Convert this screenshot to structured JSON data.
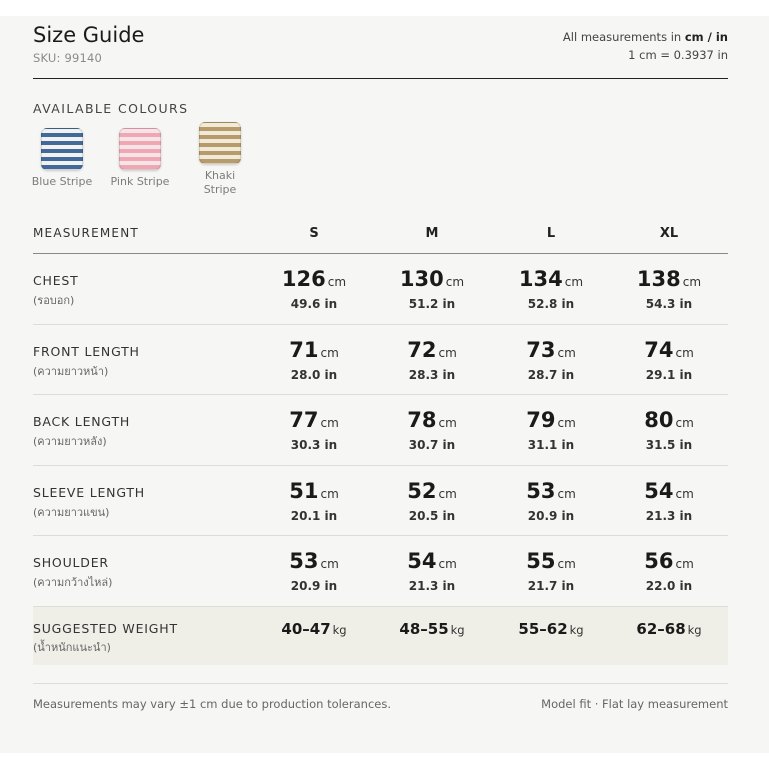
{
  "header": {
    "title": "Size Guide",
    "sku": "SKU: 99140",
    "units_prefix": "All measurements in ",
    "units_value": "cm / in",
    "conversion": "1 cm = 0.3937 in"
  },
  "colours": {
    "title": "AVAILABLE COLOURS",
    "items": [
      {
        "name": "Blue Stripe",
        "base": "#f1f1ef",
        "stripe": "#41699b"
      },
      {
        "name": "Pink Stripe",
        "base": "#f7e4e7",
        "stripe": "#f0a7b4"
      },
      {
        "name": "Khaki Stripe",
        "base": "#f1ead8",
        "stripe": "#b79b6a"
      }
    ],
    "khaki_line1": "Khaki",
    "khaki_line2": "Stripe"
  },
  "table": {
    "header_label": "MEASUREMENT",
    "sizes": [
      "S",
      "M",
      "L",
      "XL"
    ],
    "rows": [
      {
        "label": "CHEST",
        "sub": "(รอบอก)",
        "cm": [
          "126",
          "130",
          "134",
          "138"
        ],
        "inch": [
          "49.6 in",
          "51.2 in",
          "52.8 in",
          "54.3 in"
        ]
      },
      {
        "label": "FRONT LENGTH",
        "sub": "(ความยาวหน้า)",
        "cm": [
          "71",
          "72",
          "73",
          "74"
        ],
        "inch": [
          "28.0 in",
          "28.3 in",
          "28.7 in",
          "29.1 in"
        ]
      },
      {
        "label": "BACK LENGTH",
        "sub": "(ความยาวหลัง)",
        "cm": [
          "77",
          "78",
          "79",
          "80"
        ],
        "inch": [
          "30.3 in",
          "30.7 in",
          "31.1 in",
          "31.5 in"
        ]
      },
      {
        "label": "SLEEVE LENGTH",
        "sub": "(ความยาวแขน)",
        "cm": [
          "51",
          "52",
          "53",
          "54"
        ],
        "inch": [
          "20.1 in",
          "20.5 in",
          "20.9 in",
          "21.3 in"
        ]
      },
      {
        "label": "SHOULDER",
        "sub": "(ความกว้างไหล่)",
        "cm": [
          "53",
          "54",
          "55",
          "56"
        ],
        "inch": [
          "20.9 in",
          "21.3 in",
          "21.7 in",
          "22.0 in"
        ]
      }
    ],
    "cm_unit": "cm",
    "weight": {
      "label": "SUGGESTED WEIGHT",
      "sub": "(น้ำหนักแนะนำ)",
      "values": [
        "40–47",
        "48–55",
        "55–62",
        "62–68"
      ],
      "unit": "kg"
    }
  },
  "footer": {
    "left": "Measurements may vary ±1 cm due to production tolerances.",
    "right": "Model fit · Flat lay measurement"
  }
}
